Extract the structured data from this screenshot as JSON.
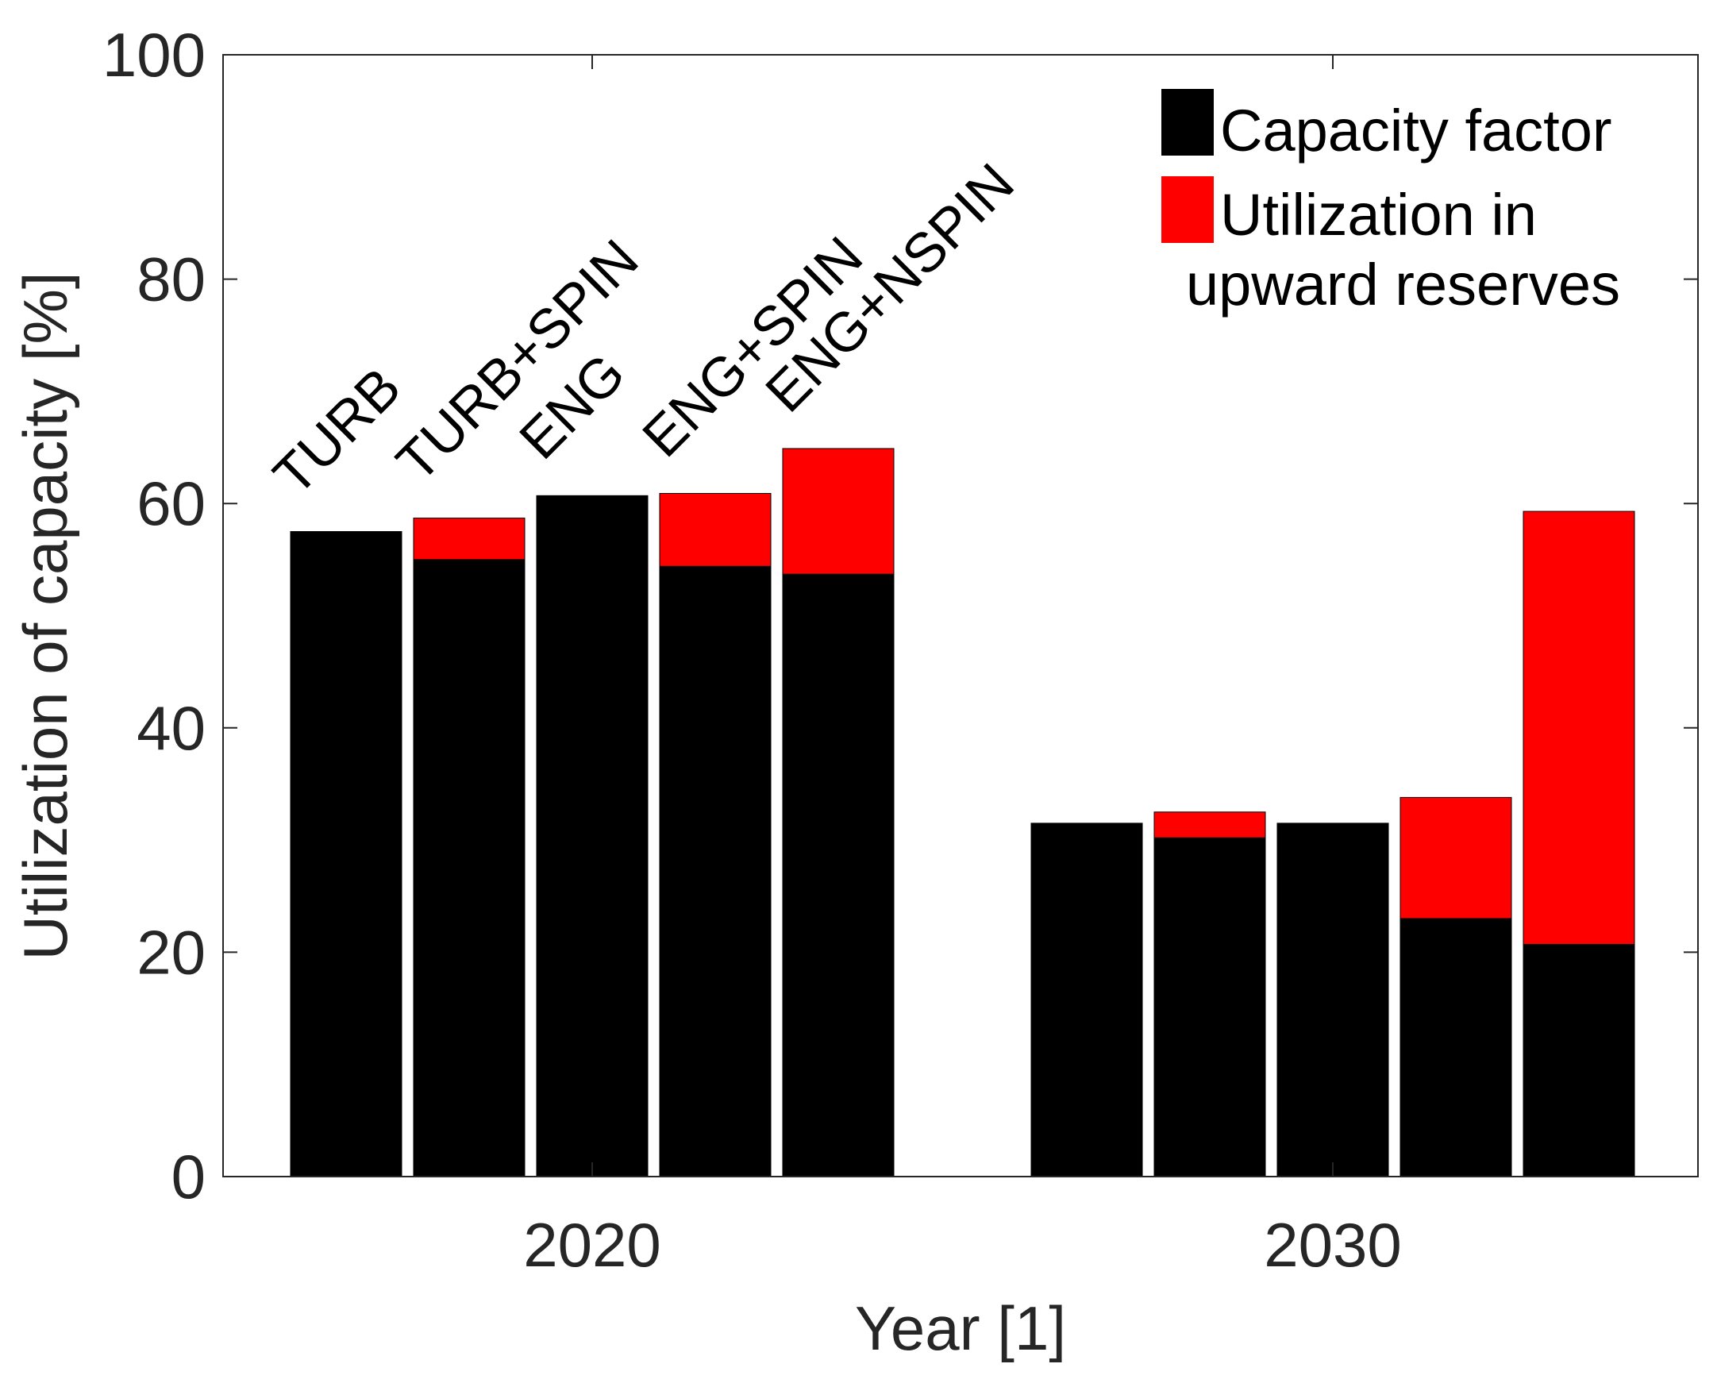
{
  "chart_data": {
    "type": "stacked-bar",
    "xlabel": "Year [1]",
    "ylabel": "Utilization of capacity [%]",
    "ylim": [
      0,
      100
    ],
    "yticks": [
      0,
      20,
      40,
      60,
      80,
      100
    ],
    "categories": [
      "2020",
      "2030"
    ],
    "scenarios": [
      "TURB",
      "TURB+SPIN",
      "ENG",
      "ENG+SPIN",
      "ENG+NSPIN"
    ],
    "series": [
      {
        "name": "Capacity factor",
        "color": "#000000",
        "values": [
          [
            57.5,
            55.0,
            60.7,
            54.4,
            53.7
          ],
          [
            31.5,
            30.2,
            31.5,
            23.0,
            20.7
          ]
        ]
      },
      {
        "name": "Utilization in upward reserves",
        "color": "#ff0000",
        "values": [
          [
            0.0,
            3.7,
            0.0,
            6.5,
            11.2
          ],
          [
            0.0,
            2.3,
            0.0,
            10.8,
            38.6
          ]
        ]
      }
    ],
    "legend": {
      "position": "top-right",
      "entries": [
        "Capacity factor",
        "Utilization in",
        "upward reserves"
      ]
    },
    "grid": false
  }
}
